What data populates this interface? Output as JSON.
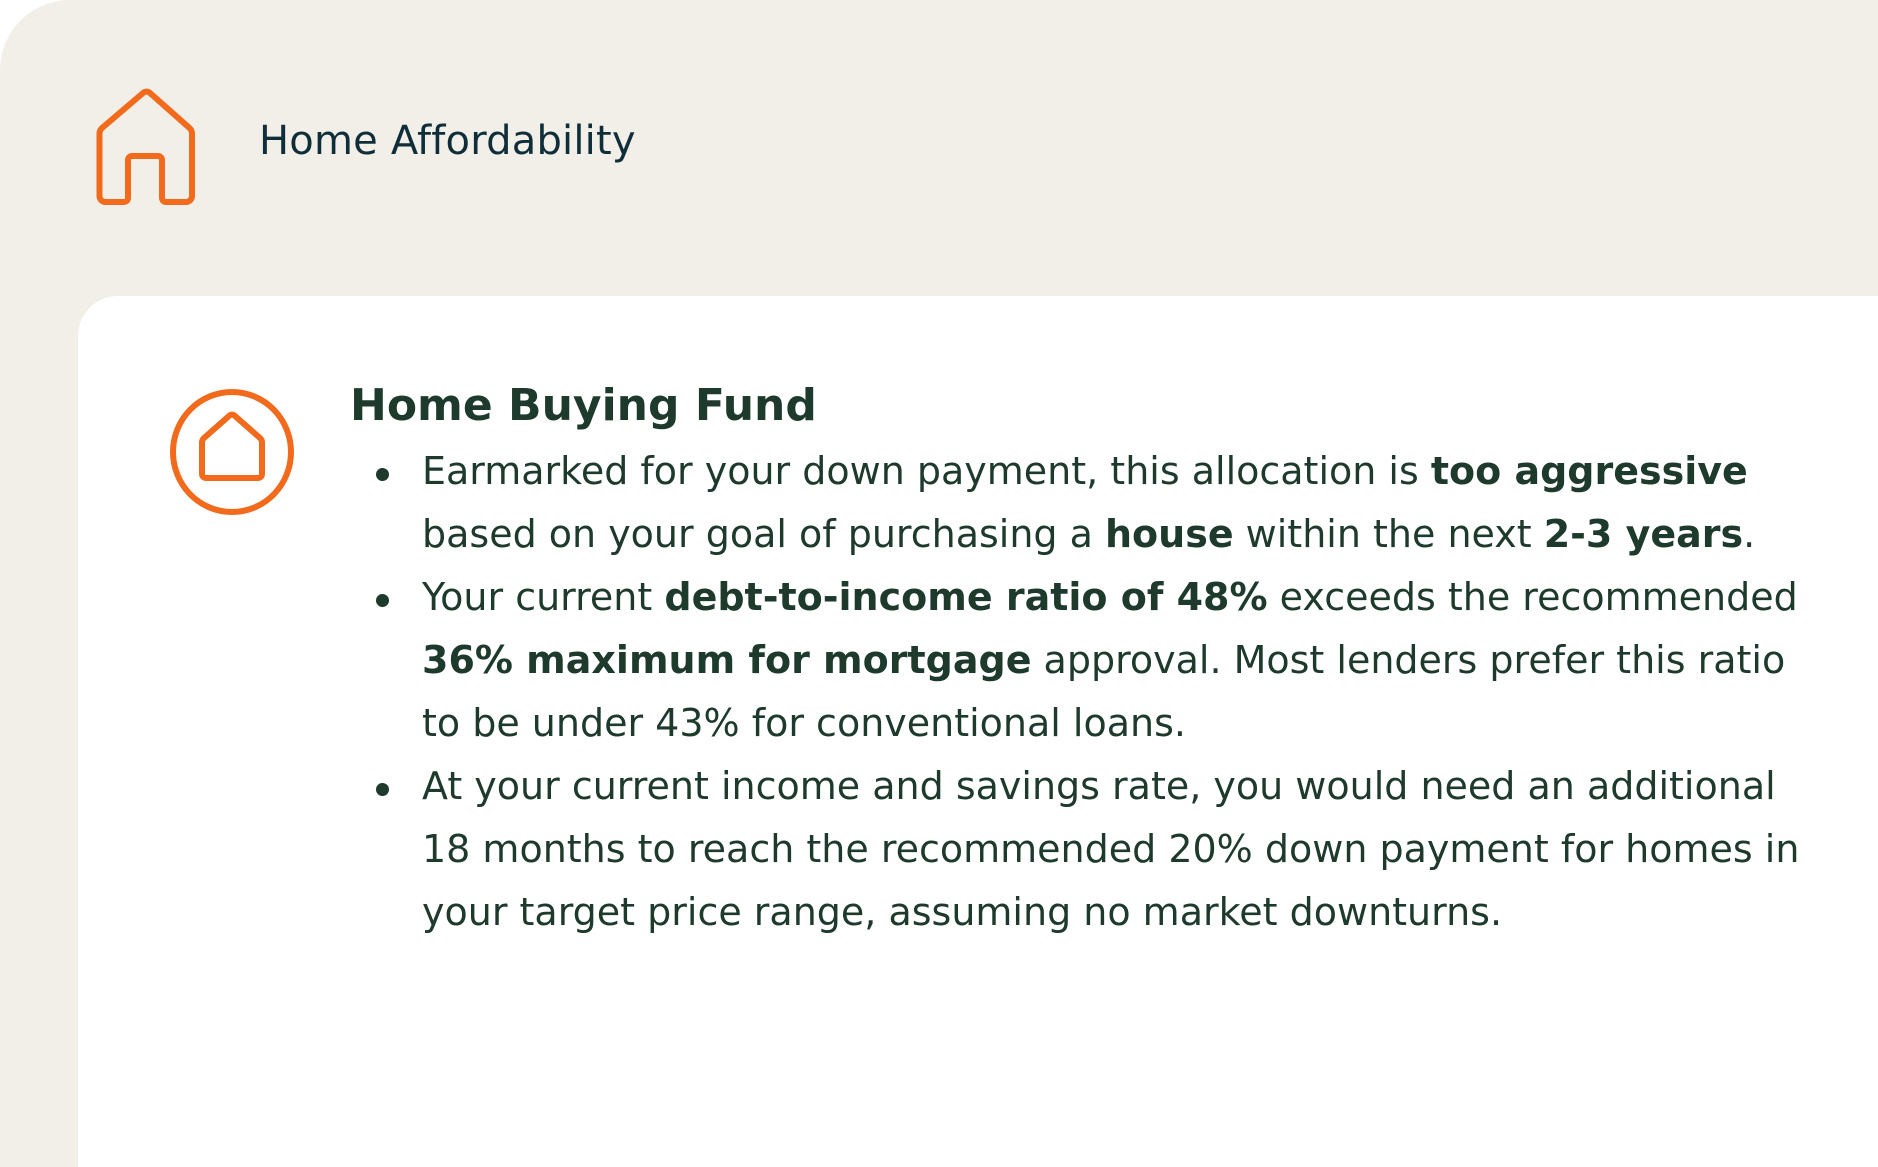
{
  "header": {
    "title": "Home Affordability",
    "icon": "house-outline-icon"
  },
  "colors": {
    "accent": "#f26b1d",
    "text": "#1e3a2c",
    "title": "#0f2e3a",
    "background": "#f1efe8",
    "card": "#ffffff"
  },
  "card": {
    "icon": "house-in-circle-icon",
    "heading": "Home Buying Fund",
    "bullets": [
      [
        {
          "t": "Earmarked for your down payment, this allocation is "
        },
        {
          "t": "too aggressive",
          "b": true
        },
        {
          "t": " based on your goal of purchasing a "
        },
        {
          "t": "house",
          "b": true
        },
        {
          "t": " within the next "
        },
        {
          "t": "2-3 years",
          "b": true
        },
        {
          "t": "."
        }
      ],
      [
        {
          "t": "Your current "
        },
        {
          "t": "debt-to-income ratio of 48%",
          "b": true
        },
        {
          "t": " exceeds the recommended "
        },
        {
          "t": "36% maximum for mortgage",
          "b": true
        },
        {
          "t": " approval. Most lenders prefer this ratio to be under 43% for conventional loans."
        }
      ],
      [
        {
          "t": "At your current income and savings rate, you would need an additional 18 months to reach the recommended 20% down payment for homes in your target price range, assuming no market downturns."
        }
      ]
    ]
  }
}
